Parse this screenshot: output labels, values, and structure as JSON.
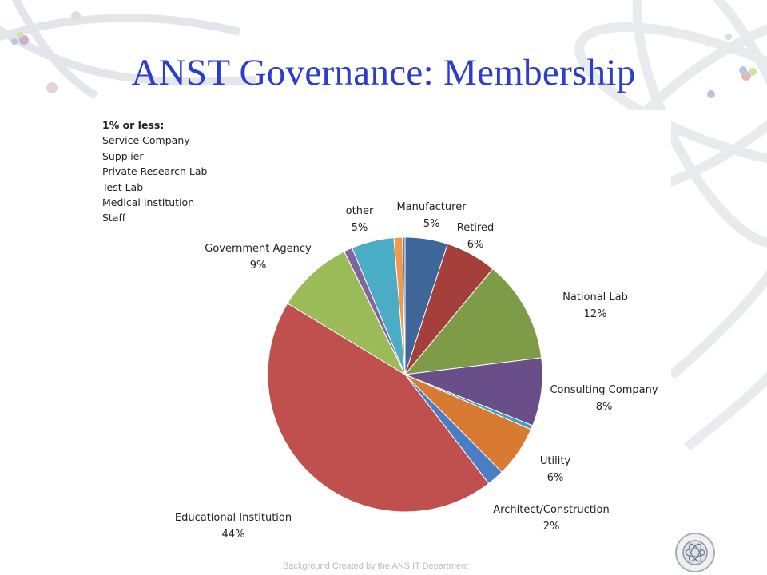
{
  "slide": {
    "title": "ANST Governance: Membership",
    "footer": "Background Created by the ANS IT Department"
  },
  "small_categories": {
    "header": "1% or less:",
    "items": [
      "Service Company",
      "Supplier",
      "Private Research Lab",
      "Test Lab",
      "Medical Institution",
      "Staff"
    ]
  },
  "chart_data": {
    "type": "pie",
    "title": "",
    "start": "12 o'clock",
    "direction": "clockwise",
    "slices": [
      {
        "label": "Manufacturer",
        "value": 5,
        "value_label": "5%",
        "color": "#3F6699"
      },
      {
        "label": "Retired",
        "value": 6,
        "value_label": "6%",
        "color": "#A43F3C"
      },
      {
        "label": "National Lab",
        "value": 12,
        "value_label": "12%",
        "color": "#7E9B47"
      },
      {
        "label": "Consulting Company",
        "value": 8,
        "value_label": "8%",
        "color": "#6A4E8A"
      },
      {
        "label": "",
        "value": 0.5,
        "value_label": "",
        "color": "#3FA0B7"
      },
      {
        "label": "Utility",
        "value": 6,
        "value_label": "6%",
        "color": "#D97A33"
      },
      {
        "label": "Architect/Construction",
        "value": 2,
        "value_label": "2%",
        "color": "#4A7DC4"
      },
      {
        "label": "Educational Institution",
        "value": 44,
        "value_label": "44%",
        "color": "#C0504D"
      },
      {
        "label": "Government Agency",
        "value": 9,
        "value_label": "9%",
        "color": "#9BBB59"
      },
      {
        "label": "",
        "value": 1,
        "value_label": "",
        "color": "#8064A2"
      },
      {
        "label": "other",
        "value": 5,
        "value_label": "5%",
        "color": "#4BACC6"
      },
      {
        "label": "",
        "value": 1,
        "value_label": "",
        "color": "#F79646"
      },
      {
        "label": "",
        "value": 0.3,
        "value_label": "",
        "color": "#4F81BD"
      }
    ]
  }
}
